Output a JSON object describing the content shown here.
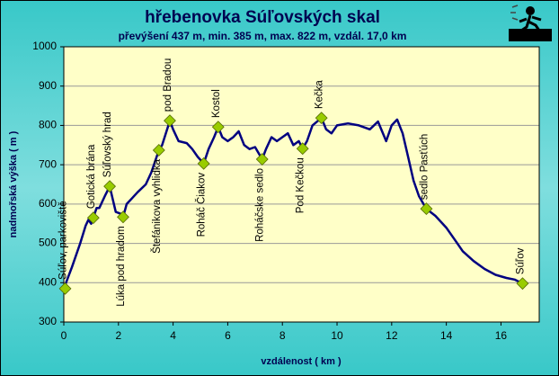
{
  "chart_data": {
    "type": "line",
    "title": "hřebenovka Súľovských skal",
    "subtitle": "převýšení 437 m, min. 385 m, max. 822 m, vzdál. 17,0 km",
    "x_label": "vzdálenost ( km )",
    "y_label": "nadmořská výška ( m )",
    "xlim": [
      0,
      17.4
    ],
    "ylim": [
      300,
      1000
    ],
    "xticks": [
      0,
      2,
      4,
      6,
      8,
      10,
      12,
      14,
      16
    ],
    "yticks": [
      300,
      400,
      500,
      600,
      700,
      800,
      900,
      1000
    ],
    "grid": true,
    "color": "#000080",
    "x": [
      0,
      0.3,
      0.6,
      0.8,
      0.9,
      1.0,
      1.08,
      1.2,
      1.3,
      1.5,
      1.68,
      1.8,
      1.9,
      2.1,
      2.17,
      2.3,
      2.5,
      2.7,
      3.0,
      3.2,
      3.48,
      3.6,
      3.88,
      4.0,
      4.2,
      4.5,
      4.7,
      4.9,
      5.12,
      5.3,
      5.5,
      5.65,
      5.8,
      6.0,
      6.2,
      6.4,
      6.6,
      6.8,
      7.0,
      7.26,
      7.4,
      7.6,
      7.8,
      8.0,
      8.2,
      8.4,
      8.6,
      8.74,
      8.9,
      9.1,
      9.43,
      9.6,
      9.8,
      10.0,
      10.4,
      10.8,
      11.2,
      11.5,
      11.8,
      12.0,
      12.2,
      12.4,
      12.6,
      12.8,
      13.0,
      13.27,
      13.6,
      14.0,
      14.3,
      14.6,
      15.0,
      15.4,
      15.8,
      16.2,
      16.5,
      16.79
    ],
    "values": [
      385,
      440,
      500,
      545,
      560,
      550,
      565,
      590,
      590,
      620,
      645,
      610,
      580,
      575,
      567,
      600,
      615,
      630,
      650,
      680,
      737,
      750,
      812,
      790,
      760,
      755,
      740,
      720,
      703,
      740,
      770,
      796,
      770,
      760,
      770,
      785,
      750,
      740,
      745,
      714,
      740,
      770,
      760,
      770,
      780,
      750,
      760,
      741,
      760,
      800,
      819,
      790,
      780,
      800,
      805,
      800,
      790,
      810,
      760,
      800,
      815,
      780,
      720,
      660,
      620,
      588,
      570,
      540,
      510,
      480,
      455,
      435,
      420,
      412,
      408,
      398
    ],
    "waypoints": {
      "color": "#99cc00",
      "labels": [
        "Súľov, parkoviště",
        "Gotická brána",
        "Súľovský hrad",
        "Lúka pod hradom",
        "Štefánikova vyhlidka",
        "pod Bradou",
        "Roháč Čiakov",
        "Kostol",
        "Roháčske sedlo",
        "Pod Kečkou",
        "Kečka",
        "sedlo Pasťúch",
        "Súľov"
      ],
      "x": [
        0.05,
        1.08,
        1.68,
        2.17,
        3.48,
        3.88,
        5.12,
        5.65,
        7.26,
        8.74,
        9.43,
        13.27,
        16.79
      ],
      "values": [
        385,
        565,
        645,
        567,
        737,
        812,
        703,
        796,
        714,
        741,
        819,
        588,
        398
      ]
    }
  }
}
